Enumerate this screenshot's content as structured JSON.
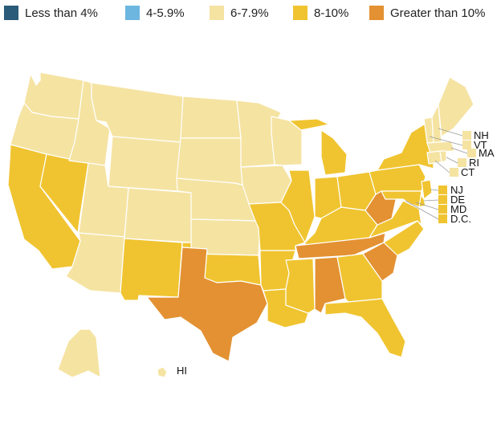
{
  "legend": [
    {
      "label": "Less than 4%",
      "color": "#2a5b78"
    },
    {
      "label": "4-5.9%",
      "color": "#6cb6e0"
    },
    {
      "label": "6-7.9%",
      "color": "#f5e3a2"
    },
    {
      "label": "8-10%",
      "color": "#f0c430"
    },
    {
      "label": "Greater than 10%",
      "color": "#e39132"
    }
  ],
  "small_states": {
    "nh": "NH",
    "vt": "VT",
    "ma": "MA",
    "ri": "RI",
    "ct": "CT",
    "nj": "NJ",
    "de": "DE",
    "md": "MD",
    "dc": "D.C.",
    "hi": "HI"
  },
  "state_category": {
    "WA": "6-7.9%",
    "OR": "6-7.9%",
    "ID": "6-7.9%",
    "MT": "6-7.9%",
    "WY": "6-7.9%",
    "ND": "6-7.9%",
    "SD": "6-7.9%",
    "NE": "6-7.9%",
    "KS": "6-7.9%",
    "CO": "6-7.9%",
    "UT": "6-7.9%",
    "AZ": "6-7.9%",
    "MN": "6-7.9%",
    "IA": "6-7.9%",
    "WI": "6-7.9%",
    "VT": "6-7.9%",
    "NH": "6-7.9%",
    "ME": "6-7.9%",
    "MA": "6-7.9%",
    "RI": "6-7.9%",
    "CT": "6-7.9%",
    "AK": "6-7.9%",
    "HI": "6-7.9%",
    "CA": "8-10%",
    "NV": "8-10%",
    "NM": "8-10%",
    "OK": "8-10%",
    "MO": "8-10%",
    "AR": "8-10%",
    "LA": "8-10%",
    "MS": "8-10%",
    "IL": "8-10%",
    "IN": "8-10%",
    "MI": "8-10%",
    "OH": "8-10%",
    "KY": "8-10%",
    "GA": "8-10%",
    "FL": "8-10%",
    "NC": "8-10%",
    "VA": "8-10%",
    "PA": "8-10%",
    "NY": "8-10%",
    "NJ": "8-10%",
    "DE": "8-10%",
    "MD": "8-10%",
    "DC": "8-10%",
    "TX": "Greater than 10%",
    "TN": "Greater than 10%",
    "AL": "Greater than 10%",
    "SC": "Greater than 10%",
    "WV": "Greater than 10%"
  }
}
